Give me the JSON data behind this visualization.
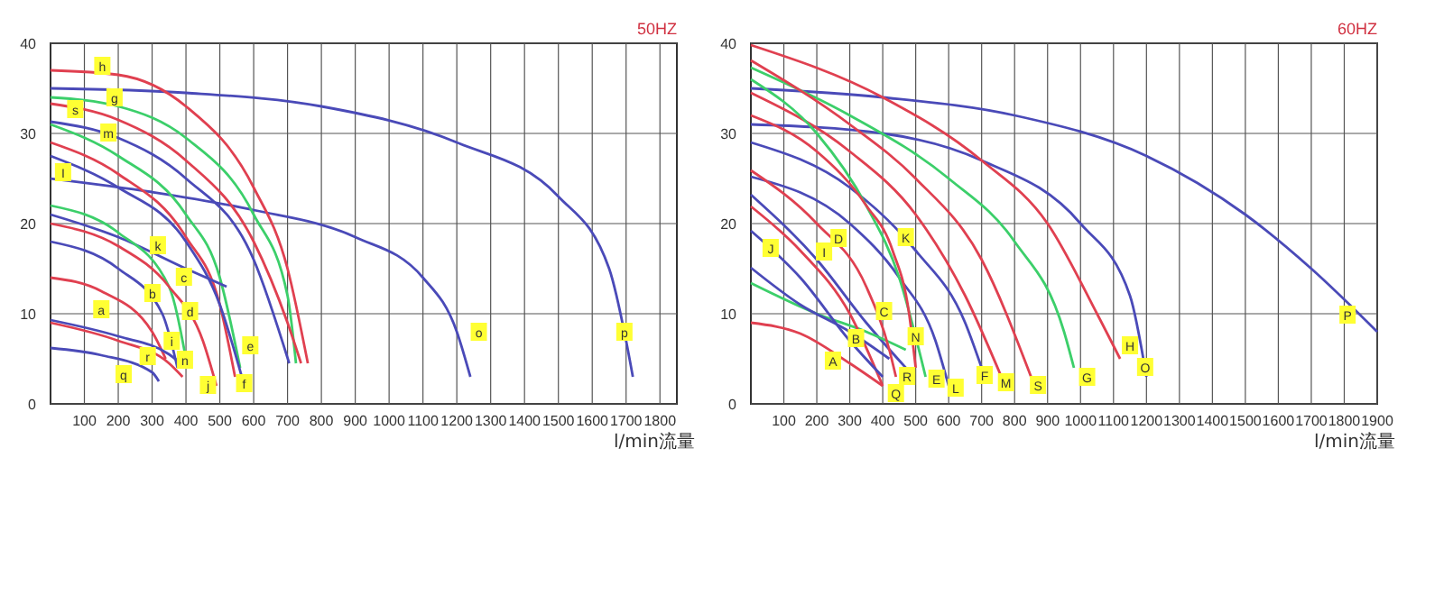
{
  "chart_data": [
    {
      "type": "line",
      "title": "50HZ",
      "xlabel": "l/min流量",
      "xlim": [
        0,
        1850
      ],
      "ylim": [
        0,
        40
      ],
      "xticks": [
        100,
        200,
        300,
        400,
        500,
        600,
        700,
        800,
        900,
        1000,
        1100,
        1200,
        1300,
        1400,
        1500,
        1600,
        1700,
        1800
      ],
      "yticks": [
        0,
        10,
        20,
        30,
        40
      ],
      "grid": true,
      "series": [
        {
          "color": "#4a4ab8",
          "x": [
            0,
            400,
            800,
            1200,
            1500,
            1650,
            1700,
            1720
          ],
          "values": [
            35,
            34.5,
            33,
            29,
            23,
            15,
            7,
            3
          ]
        },
        {
          "color": "#4a4ab8",
          "x": [
            0,
            300,
            600,
            900,
            1100,
            1200,
            1240
          ],
          "values": [
            25,
            23.5,
            21.5,
            18.5,
            14,
            8,
            3
          ]
        },
        {
          "color": "#e04050",
          "x": [
            0,
            200,
            400,
            600,
            700,
            760
          ],
          "values": [
            37,
            36.5,
            33,
            24,
            15,
            4.5
          ]
        },
        {
          "color": "#3ccf6a",
          "x": [
            0,
            200,
            400,
            600,
            700,
            725
          ],
          "values": [
            34,
            33,
            29.5,
            21,
            12,
            4.5
          ]
        },
        {
          "color": "#e04050",
          "x": [
            0,
            200,
            400,
            600,
            700,
            740
          ],
          "values": [
            33.3,
            31.5,
            27,
            18,
            9,
            4.5
          ]
        },
        {
          "color": "#4a4ab8",
          "x": [
            0,
            200,
            400,
            600,
            705
          ],
          "values": [
            31.3,
            29.5,
            25,
            16,
            4.5
          ]
        },
        {
          "color": "#3ccf6a",
          "x": [
            0,
            200,
            400,
            500,
            560
          ],
          "values": [
            31,
            27.5,
            21,
            14,
            4
          ]
        },
        {
          "color": "#e04050",
          "x": [
            0,
            200,
            400,
            500,
            545
          ],
          "values": [
            29,
            25.5,
            18.5,
            11,
            3
          ]
        },
        {
          "color": "#4a4ab8",
          "x": [
            0,
            200,
            400,
            500,
            565
          ],
          "values": [
            27.5,
            24,
            18,
            11,
            3
          ]
        },
        {
          "color": "#4a4ab8",
          "x": [
            0,
            200,
            400,
            520
          ],
          "values": [
            21,
            18.5,
            15,
            13
          ]
        },
        {
          "color": "#3ccf6a",
          "x": [
            0,
            200,
            350,
            400
          ],
          "values": [
            22,
            19,
            13,
            5
          ]
        },
        {
          "color": "#e04050",
          "x": [
            0,
            200,
            350,
            450,
            490
          ],
          "values": [
            20,
            17.5,
            13,
            7,
            2
          ]
        },
        {
          "color": "#4a4ab8",
          "x": [
            0,
            200,
            330,
            375
          ],
          "values": [
            18,
            15,
            10,
            4
          ]
        },
        {
          "color": "#e04050",
          "x": [
            0,
            150,
            300,
            340
          ],
          "values": [
            14,
            12.5,
            8,
            5
          ]
        },
        {
          "color": "#4a4ab8",
          "x": [
            0,
            200,
            350,
            400
          ],
          "values": [
            9.3,
            7.5,
            5.5,
            4
          ]
        },
        {
          "color": "#e04050",
          "x": [
            0,
            200,
            350,
            390
          ],
          "values": [
            9,
            7,
            4.5,
            3
          ]
        },
        {
          "color": "#4a4ab8",
          "x": [
            0,
            150,
            300,
            320
          ],
          "values": [
            6.2,
            5.4,
            3.5,
            2.5
          ]
        }
      ],
      "annotations": [
        {
          "text": "h",
          "x": 153,
          "y": 37.5
        },
        {
          "text": "g",
          "x": 189,
          "y": 34
        },
        {
          "text": "s",
          "x": 73,
          "y": 32.7
        },
        {
          "text": "m",
          "x": 171,
          "y": 30.1
        },
        {
          "text": "I",
          "x": 37,
          "y": 25.7
        },
        {
          "text": "k",
          "x": 317,
          "y": 17.6
        },
        {
          "text": "c",
          "x": 394,
          "y": 14.1
        },
        {
          "text": "b",
          "x": 301,
          "y": 12.3
        },
        {
          "text": "d",
          "x": 412,
          "y": 10.3
        },
        {
          "text": "a",
          "x": 150,
          "y": 10.5
        },
        {
          "text": "i",
          "x": 358,
          "y": 7
        },
        {
          "text": "n",
          "x": 397,
          "y": 4.9
        },
        {
          "text": "r",
          "x": 287,
          "y": 5.3
        },
        {
          "text": "q",
          "x": 216,
          "y": 3.3
        },
        {
          "text": "j",
          "x": 465,
          "y": 2.1
        },
        {
          "text": "f",
          "x": 572,
          "y": 2.3
        },
        {
          "text": "e",
          "x": 590,
          "y": 6.5
        },
        {
          "text": "o",
          "x": 1265,
          "y": 8
        },
        {
          "text": "p",
          "x": 1695,
          "y": 8
        }
      ]
    },
    {
      "type": "line",
      "title": "60HZ",
      "xlabel": "l/min流量",
      "xlim": [
        0,
        1900
      ],
      "ylim": [
        0,
        40
      ],
      "xticks": [
        100,
        200,
        300,
        400,
        500,
        600,
        700,
        800,
        900,
        1000,
        1100,
        1200,
        1300,
        1400,
        1500,
        1600,
        1700,
        1800,
        1900
      ],
      "yticks": [
        0,
        10,
        20,
        30,
        40
      ],
      "grid": true,
      "series": [
        {
          "color": "#4a4ab8",
          "x": [
            0,
            400,
            800,
            1200,
            1500,
            1700,
            1900
          ],
          "values": [
            35,
            34,
            32,
            27.5,
            21,
            15,
            8
          ]
        },
        {
          "color": "#4a4ab8",
          "x": [
            0,
            400,
            700,
            1000,
            1150,
            1200
          ],
          "values": [
            31,
            30,
            27,
            20,
            12,
            3
          ]
        },
        {
          "color": "#e04050",
          "x": [
            0,
            400,
            700,
            900,
            1050,
            1120
          ],
          "values": [
            39.8,
            34,
            27,
            20,
            10,
            5
          ]
        },
        {
          "color": "#3ccf6a",
          "x": [
            0,
            300,
            600,
            800,
            950,
            980
          ],
          "values": [
            37.3,
            32,
            25,
            18,
            8,
            4
          ]
        },
        {
          "color": "#e04050",
          "x": [
            0,
            300,
            500,
            700,
            850
          ],
          "values": [
            38.1,
            31,
            25,
            16,
            3
          ]
        },
        {
          "color": "#e04050",
          "x": [
            0,
            300,
            500,
            650,
            760
          ],
          "values": [
            34.5,
            28,
            21,
            12,
            3
          ]
        },
        {
          "color": "#4a4ab8",
          "x": [
            0,
            300,
            500,
            650,
            700
          ],
          "values": [
            29,
            24,
            17,
            9,
            4
          ]
        },
        {
          "color": "#4a4ab8",
          "x": [
            0,
            300,
            450,
            560,
            600
          ],
          "values": [
            25.2,
            20,
            14,
            7,
            2
          ]
        },
        {
          "color": "#3ccf6a",
          "x": [
            0,
            200,
            350,
            450,
            530
          ],
          "values": [
            36,
            30,
            22,
            14,
            3
          ]
        },
        {
          "color": "#e04050",
          "x": [
            0,
            200,
            350,
            430,
            480,
            500
          ],
          "values": [
            32,
            28,
            22,
            17,
            10,
            4
          ]
        },
        {
          "color": "#4a4ab8",
          "x": [
            0,
            200,
            350,
            470
          ],
          "values": [
            23.2,
            16,
            9,
            4
          ]
        },
        {
          "color": "#3ccf6a",
          "x": [
            0,
            200,
            350,
            470
          ],
          "values": [
            13.4,
            10,
            8,
            6
          ]
        },
        {
          "color": "#e04050",
          "x": [
            0,
            200,
            350,
            420,
            440
          ],
          "values": [
            25.9,
            20,
            13,
            6,
            3
          ]
        },
        {
          "color": "#e04050",
          "x": [
            0,
            150,
            300,
            400
          ],
          "values": [
            21.9,
            17,
            10,
            2
          ]
        },
        {
          "color": "#4a4ab8",
          "x": [
            0,
            150,
            300,
            400
          ],
          "values": [
            19.2,
            14,
            7,
            3
          ]
        },
        {
          "color": "#e04050",
          "x": [
            0,
            150,
            300,
            400
          ],
          "values": [
            9,
            7.8,
            4.5,
            2
          ]
        },
        {
          "color": "#4a4ab8",
          "x": [
            0,
            150,
            300,
            420
          ],
          "values": [
            15.1,
            11,
            8,
            5
          ]
        }
      ],
      "annotations": [
        {
          "text": "J",
          "x": 60,
          "y": 17.3
        },
        {
          "text": "I",
          "x": 222,
          "y": 16.9
        },
        {
          "text": "D",
          "x": 266,
          "y": 18.4
        },
        {
          "text": "K",
          "x": 470,
          "y": 18.5
        },
        {
          "text": "C",
          "x": 404,
          "y": 10.3
        },
        {
          "text": "B",
          "x": 319,
          "y": 7.3
        },
        {
          "text": "A",
          "x": 249,
          "y": 4.8
        },
        {
          "text": "N",
          "x": 500,
          "y": 7.5
        },
        {
          "text": "Q",
          "x": 440,
          "y": 1.2
        },
        {
          "text": "R",
          "x": 474,
          "y": 3.1
        },
        {
          "text": "E",
          "x": 563,
          "y": 2.8
        },
        {
          "text": "L",
          "x": 621,
          "y": 1.8
        },
        {
          "text": "F",
          "x": 709,
          "y": 3.2
        },
        {
          "text": "M",
          "x": 774,
          "y": 2.4
        },
        {
          "text": "S",
          "x": 871,
          "y": 2.1
        },
        {
          "text": "G",
          "x": 1020,
          "y": 3
        },
        {
          "text": "H",
          "x": 1150,
          "y": 6.5
        },
        {
          "text": "O",
          "x": 1196,
          "y": 4.1
        },
        {
          "text": "P",
          "x": 1810,
          "y": 9.9
        }
      ]
    }
  ]
}
